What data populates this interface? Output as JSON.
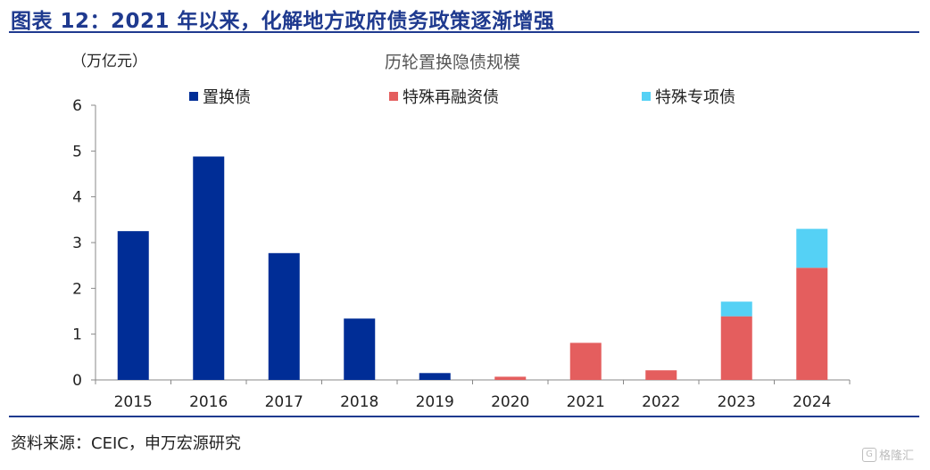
{
  "figure": {
    "header": "图表 12：2021 年以来，化解地方政府债务政策逐渐增强",
    "source": "资料来源：CEIC，申万宏源研究",
    "watermark": "格隆汇"
  },
  "chart_data": {
    "type": "bar",
    "stacked": true,
    "title": "历轮置换隐债规模",
    "unit_label": "（万亿元）",
    "categories": [
      "2015",
      "2016",
      "2017",
      "2018",
      "2019",
      "2020",
      "2021",
      "2022",
      "2023",
      "2024"
    ],
    "series": [
      {
        "name": "置换债",
        "color": "#002d96",
        "values": [
          3.25,
          4.88,
          2.77,
          1.34,
          0.15,
          0,
          0,
          0,
          0,
          0
        ]
      },
      {
        "name": "特殊再融资债",
        "color": "#e45e5e",
        "values": [
          0,
          0,
          0,
          0,
          0,
          0.07,
          0.81,
          0.21,
          1.39,
          2.45
        ]
      },
      {
        "name": "特殊专项债",
        "color": "#55d1f5",
        "values": [
          0,
          0,
          0,
          0,
          0,
          0,
          0,
          0,
          0.32,
          0.85
        ]
      }
    ],
    "ylim": [
      0,
      6
    ],
    "yticks": [
      0,
      1,
      2,
      3,
      4,
      5,
      6
    ],
    "grid": false,
    "legend": "top"
  }
}
